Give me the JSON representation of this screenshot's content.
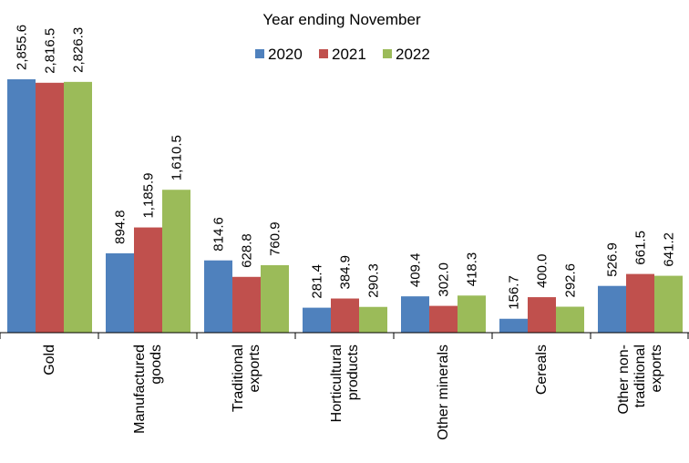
{
  "chart_data": {
    "type": "bar",
    "title": "Year ending November",
    "categories": [
      [
        "Gold"
      ],
      [
        "Manufactured",
        "goods"
      ],
      [
        "Traditional",
        "exports"
      ],
      [
        "Horticultural",
        "products"
      ],
      [
        "Other minerals"
      ],
      [
        "Cereals"
      ],
      [
        "Other non-",
        "traditional",
        "exports"
      ]
    ],
    "series": [
      {
        "name": "2020",
        "color": "#4F81BD",
        "values": [
          2855.6,
          894.8,
          814.6,
          281.4,
          409.4,
          156.7,
          526.9
        ],
        "labels": [
          "2,855.6",
          "894.8",
          "814.6",
          "281.4",
          "409.4",
          "156.7",
          "526.9"
        ]
      },
      {
        "name": "2021",
        "color": "#C0504D",
        "values": [
          2816.5,
          1185.9,
          628.8,
          384.9,
          302.0,
          400.0,
          661.5
        ],
        "labels": [
          "2,816.5",
          "1,185.9",
          "628.8",
          "384.9",
          "302.0",
          "400.0",
          "661.5"
        ]
      },
      {
        "name": "2022",
        "color": "#9BBB59",
        "values": [
          2826.3,
          1610.5,
          760.9,
          290.3,
          418.3,
          292.6,
          641.2
        ],
        "labels": [
          "2,826.3",
          "1,610.5",
          "760.9",
          "290.3",
          "418.3",
          "292.6",
          "641.2"
        ]
      }
    ],
    "xlabel": "",
    "ylabel": "",
    "ylim": [
      0,
      2900
    ],
    "grid": false,
    "legend": "top"
  }
}
